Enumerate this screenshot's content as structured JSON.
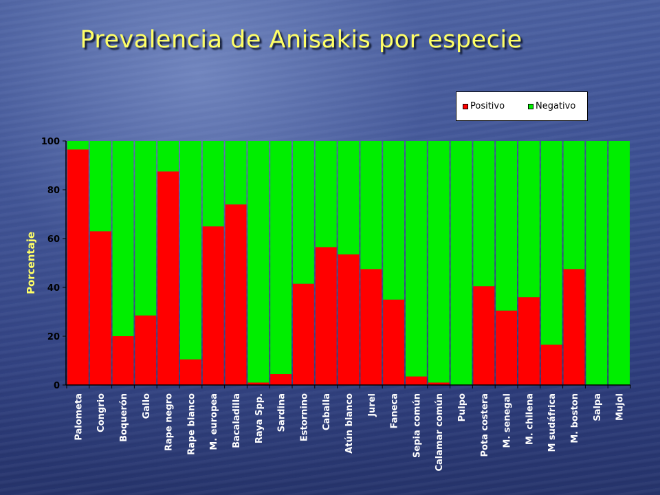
{
  "slide": {
    "title": "Prevalencia de Anisakis por especie"
  },
  "colors": {
    "positivo": "#ff0000",
    "negativo": "#00ee00",
    "title": "#ffff66",
    "axis_label": "#ffff66",
    "category_label": "#ffffff"
  },
  "chart_data": {
    "type": "bar",
    "stacked": true,
    "title": "",
    "xlabel": "",
    "ylabel": "Porcentaje",
    "ylim": [
      0,
      100
    ],
    "yticks": [
      "0",
      "20",
      "40",
      "60",
      "80",
      "100"
    ],
    "grid": false,
    "legend_position": "top-right",
    "categories": [
      "Palometa",
      "Congrio",
      "Boquerón",
      "Gallo",
      "Rape negro",
      "Rape blanco",
      "M. europea",
      "Bacaladilla",
      "Raya Spp.",
      "Sardina",
      "Estornino",
      "Caballa",
      "Atún blanco",
      "Jurel",
      "Faneca",
      "Sepia común",
      "Calamar común",
      "Pulpo",
      "Pota costera",
      "M. senegal",
      "M. chilena",
      "M sudáfrica",
      "M. boston",
      "Salpa",
      "Mujol"
    ],
    "series": [
      {
        "name": "Positivo",
        "values": [
          96.5,
          63,
          20,
          28.5,
          87.5,
          10.5,
          65,
          74,
          1,
          4.5,
          41.5,
          56.5,
          53.5,
          47.5,
          35,
          3.5,
          1,
          0,
          40.5,
          30.5,
          36,
          16.5,
          47.5,
          0,
          0
        ]
      },
      {
        "name": "Negativo",
        "values": [
          3.5,
          37,
          80,
          71.5,
          12.5,
          89.5,
          35,
          26,
          99,
          95.5,
          58.5,
          43.5,
          46.5,
          52.5,
          65,
          96.5,
          99,
          100,
          59.5,
          69.5,
          64,
          83.5,
          52.5,
          100,
          100
        ]
      }
    ]
  }
}
